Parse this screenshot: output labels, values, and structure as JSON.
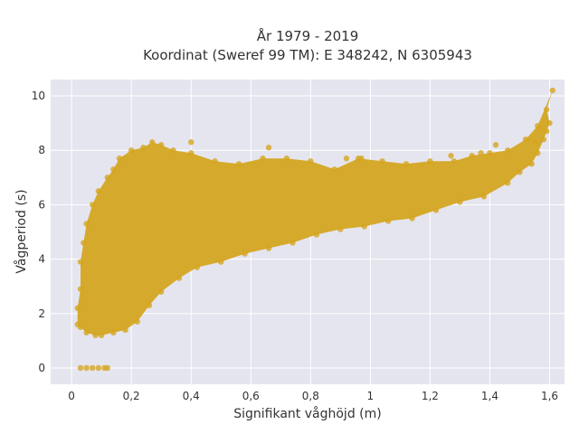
{
  "chart_data": {
    "type": "scatter",
    "title_lines": [
      "År 1979 - 2019",
      "Koordinat (Sweref 99 TM): E 348242, N 6305943"
    ],
    "xlabel": "Signifikant våghöjd (m)",
    "ylabel": "Vågperiod (s)",
    "xlim": [
      -0.07,
      1.65
    ],
    "ylim": [
      -0.6,
      10.6
    ],
    "xticks": [
      0,
      0.2,
      0.4,
      0.6,
      0.8,
      1,
      1.2,
      1.4,
      1.6
    ],
    "xtick_labels": [
      "0",
      "0,2",
      "0,4",
      "0,6",
      "0,8",
      "1",
      "1,2",
      "1,4",
      "1,6"
    ],
    "yticks": [
      0,
      2,
      4,
      6,
      8,
      10
    ],
    "ytick_labels": [
      "0",
      "2",
      "4",
      "6",
      "8",
      "10"
    ],
    "grid": true,
    "legend": "none",
    "marker_color": "#D4A520",
    "background_color": "#E5E5EF",
    "points": [
      [
        0.02,
        1.6
      ],
      [
        0.03,
        1.5
      ],
      [
        0.05,
        1.3
      ],
      [
        0.08,
        1.2
      ],
      [
        0.1,
        1.2
      ],
      [
        0.14,
        1.3
      ],
      [
        0.18,
        1.4
      ],
      [
        0.22,
        1.7
      ],
      [
        0.26,
        2.3
      ],
      [
        0.3,
        2.8
      ],
      [
        0.36,
        3.3
      ],
      [
        0.42,
        3.7
      ],
      [
        0.5,
        3.9
      ],
      [
        0.58,
        4.2
      ],
      [
        0.66,
        4.4
      ],
      [
        0.74,
        4.6
      ],
      [
        0.82,
        4.9
      ],
      [
        0.9,
        5.1
      ],
      [
        0.98,
        5.2
      ],
      [
        1.06,
        5.4
      ],
      [
        1.14,
        5.5
      ],
      [
        1.22,
        5.8
      ],
      [
        1.3,
        6.1
      ],
      [
        1.38,
        6.3
      ],
      [
        1.46,
        6.8
      ],
      [
        1.5,
        7.2
      ],
      [
        1.54,
        7.5
      ],
      [
        1.56,
        7.9
      ],
      [
        1.58,
        8.4
      ],
      [
        1.59,
        8.7
      ],
      [
        1.6,
        9.0
      ],
      [
        1.59,
        9.5
      ],
      [
        1.61,
        10.2
      ],
      [
        1.56,
        8.9
      ],
      [
        1.52,
        8.4
      ],
      [
        1.46,
        8.0
      ],
      [
        1.4,
        7.9
      ],
      [
        1.34,
        7.8
      ],
      [
        1.28,
        7.6
      ],
      [
        1.2,
        7.6
      ],
      [
        1.12,
        7.5
      ],
      [
        1.04,
        7.6
      ],
      [
        0.96,
        7.7
      ],
      [
        0.88,
        7.3
      ],
      [
        0.8,
        7.6
      ],
      [
        0.72,
        7.7
      ],
      [
        0.64,
        7.7
      ],
      [
        0.56,
        7.5
      ],
      [
        0.48,
        7.6
      ],
      [
        0.4,
        7.9
      ],
      [
        0.34,
        8.0
      ],
      [
        0.3,
        8.2
      ],
      [
        0.27,
        8.3
      ],
      [
        0.24,
        8.1
      ],
      [
        0.2,
        8.0
      ],
      [
        0.16,
        7.7
      ],
      [
        0.14,
        7.3
      ],
      [
        0.12,
        7.0
      ],
      [
        0.09,
        6.5
      ],
      [
        0.07,
        6.0
      ],
      [
        0.05,
        5.3
      ],
      [
        0.04,
        4.6
      ],
      [
        0.03,
        3.9
      ],
      [
        0.03,
        2.9
      ],
      [
        0.02,
        2.2
      ],
      [
        0.4,
        8.3
      ],
      [
        0.66,
        8.1
      ],
      [
        0.92,
        7.7
      ],
      [
        0.97,
        7.7
      ],
      [
        1.27,
        7.8
      ],
      [
        1.37,
        7.9
      ],
      [
        1.42,
        8.2
      ],
      [
        1.55,
        8.3
      ],
      [
        1.57,
        8.8
      ],
      [
        0.03,
        0.0
      ],
      [
        0.05,
        0.0
      ],
      [
        0.07,
        0.0
      ],
      [
        0.09,
        0.0
      ],
      [
        0.11,
        0.0
      ],
      [
        0.12,
        0.0
      ]
    ]
  }
}
